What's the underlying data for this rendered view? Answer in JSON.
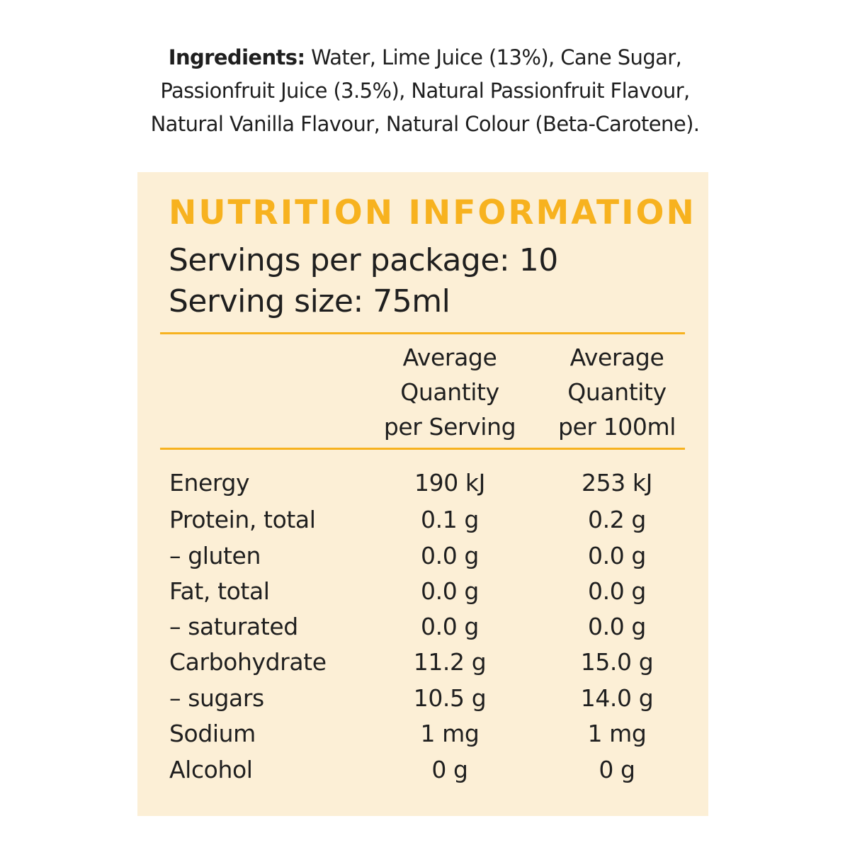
{
  "ingredients": {
    "label": "Ingredients:",
    "line1_text": " Water, Lime Juice (13%), Cane Sugar,",
    "line2": "Passionfruit Juice (3.5%), Natural Passionfruit Flavour,",
    "line3": "Natural Vanilla Flavour, Natural Colour (Beta-Carotene)."
  },
  "nutrition": {
    "title": "NUTRITION INFORMATION",
    "servings_per_package": "Servings per package: 10",
    "serving_size": "Serving size: 75ml",
    "columns": [
      [
        "Average",
        "Quantity",
        "per Serving"
      ],
      [
        "Average",
        "Quantity",
        "per 100ml"
      ]
    ],
    "rows": [
      {
        "name": "Energy",
        "per_serving": "190 kJ",
        "per_100ml": "253 kJ"
      },
      {
        "name": "Protein, total",
        "per_serving": "0.1 g",
        "per_100ml": "0.2 g"
      },
      {
        "name": "– gluten",
        "per_serving": "0.0 g",
        "per_100ml": "0.0 g"
      },
      {
        "name": "Fat, total",
        "per_serving": "0.0 g",
        "per_100ml": "0.0 g"
      },
      {
        "name": "– saturated",
        "per_serving": "0.0 g",
        "per_100ml": "0.0 g"
      },
      {
        "name": "Carbohydrate",
        "per_serving": "11.2 g",
        "per_100ml": "15.0 g"
      },
      {
        "name": "– sugars",
        "per_serving": "10.5 g",
        "per_100ml": "14.0 g"
      },
      {
        "name": "Sodium",
        "per_serving": "1 mg",
        "per_100ml": "1 mg"
      },
      {
        "name": "Alcohol",
        "per_serving": "0 g",
        "per_100ml": "0 g"
      }
    ]
  },
  "colors": {
    "accent": "#f7b21f",
    "panel_background": "#fcefd6",
    "text": "#1f1f1f"
  }
}
